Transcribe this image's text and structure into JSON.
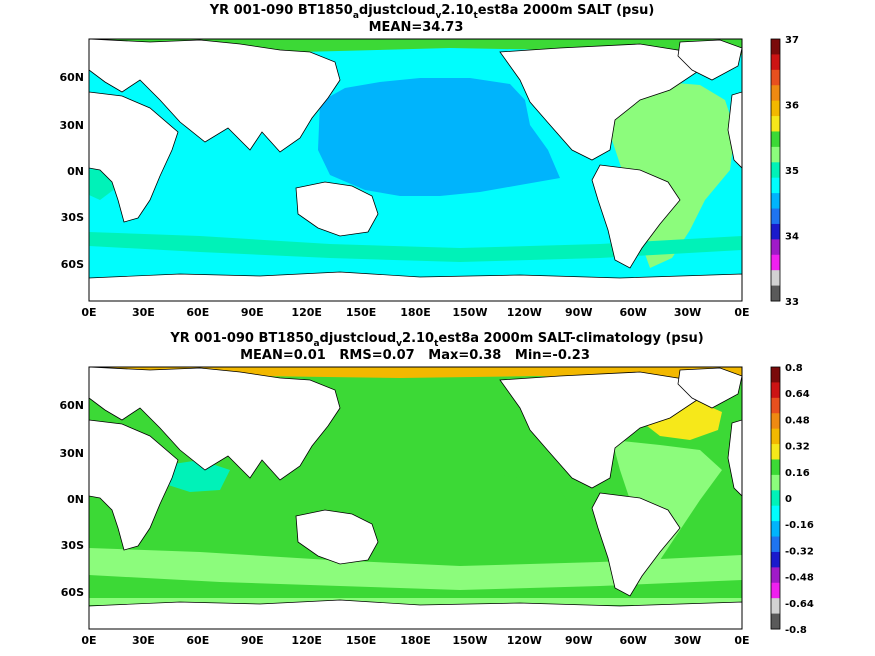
{
  "chart_data": [
    {
      "type": "heatmap",
      "title_prefix": "YR 001-090 BT1850",
      "title_sub1": "a",
      "title_mid1": "djustcloud",
      "title_sub2": "v",
      "title_mid2": "2.10",
      "title_sub3": "t",
      "title_suffix": "est8a 2000m SALT (psu)",
      "subtitle": "MEAN=34.73",
      "xticks": [
        "0E",
        "30E",
        "60E",
        "90E",
        "120E",
        "150E",
        "180E",
        "150W",
        "120W",
        "90W",
        "60W",
        "30W",
        "0E"
      ],
      "yticks": [
        "60N",
        "30N",
        "0N",
        "30S",
        "60S"
      ],
      "colorbar": {
        "labels": [
          "37",
          "36",
          "35",
          "34",
          "33"
        ],
        "colors": [
          "#7a0b0b",
          "#cc1414",
          "#e8501e",
          "#ee8a12",
          "#f2b800",
          "#f6e81a",
          "#3cd936",
          "#8cfc7c",
          "#00f2b8",
          "#00fdfd",
          "#00b4fc",
          "#1e74f0",
          "#1a1acc",
          "#a01ac8",
          "#f020f0",
          "#d2d2d2",
          "#5a5a5a"
        ]
      }
    },
    {
      "type": "heatmap",
      "title_prefix": "YR 001-090 BT1850",
      "title_sub1": "a",
      "title_mid1": "djustcloud",
      "title_sub2": "v",
      "title_mid2": "2.10",
      "title_sub3": "t",
      "title_suffix": "est8a 2000m SALT-climatology (psu)",
      "subtitle": "MEAN=0.01   RMS=0.07   Max=0.38   Min=-0.23",
      "xticks": [
        "0E",
        "30E",
        "60E",
        "90E",
        "120E",
        "150E",
        "180E",
        "150W",
        "120W",
        "90W",
        "60W",
        "30W",
        "0E"
      ],
      "yticks": [
        "60N",
        "30N",
        "0N",
        "30S",
        "60S"
      ],
      "colorbar": {
        "labels": [
          "0.8",
          "0.64",
          "0.48",
          "0.32",
          "0.16",
          "0",
          "-0.16",
          "-0.32",
          "-0.48",
          "-0.64",
          "-0.8"
        ],
        "colors": [
          "#7a0b0b",
          "#cc1414",
          "#e8501e",
          "#ee8a12",
          "#f2b800",
          "#f6e81a",
          "#3cd936",
          "#8cfc7c",
          "#00f2b8",
          "#00fdfd",
          "#00b4fc",
          "#1e74f0",
          "#1a1acc",
          "#a01ac8",
          "#f020f0",
          "#d2d2d2",
          "#5a5a5a"
        ]
      }
    }
  ]
}
